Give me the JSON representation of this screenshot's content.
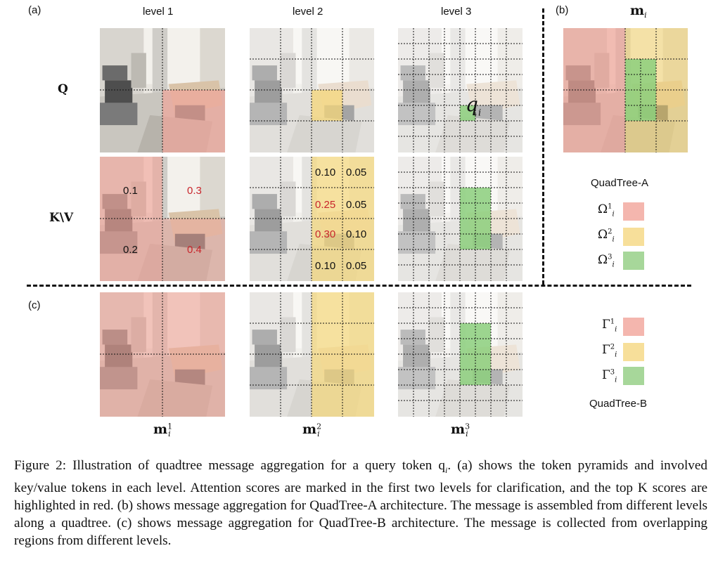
{
  "panel_labels": {
    "a": "(a)",
    "b": "(b)",
    "c": "(c)"
  },
  "levels": [
    "level 1",
    "level 2",
    "level 3"
  ],
  "row_labels": {
    "q": "Q",
    "kv": "K\\V"
  },
  "mi_label": {
    "base": "m",
    "sub": "i"
  },
  "m_labels": [
    {
      "base": "m",
      "sup": "1",
      "sub": "i"
    },
    {
      "base": "m",
      "sup": "2",
      "sub": "i"
    },
    {
      "base": "m",
      "sup": "3",
      "sub": "i"
    }
  ],
  "query_token": {
    "base": "q",
    "sub": "i"
  },
  "level1_scores": [
    {
      "value": "0.1",
      "top": false
    },
    {
      "value": "0.3",
      "top": true
    },
    {
      "value": "0.2",
      "top": false
    },
    {
      "value": "0.4",
      "top": true
    }
  ],
  "level2_scores": [
    {
      "value": "0.10",
      "top": false
    },
    {
      "value": "0.05",
      "top": false
    },
    {
      "value": "0.25",
      "top": true
    },
    {
      "value": "0.05",
      "top": false
    },
    {
      "value": "0.30",
      "top": true
    },
    {
      "value": "0.10",
      "top": false
    },
    {
      "value": "0.10",
      "top": false
    },
    {
      "value": "0.05",
      "top": false
    }
  ],
  "legend_a": {
    "title": "QuadTree-A",
    "items": [
      {
        "base": "Ω",
        "sup": "1",
        "sub": "i",
        "color": "#f4b6ae"
      },
      {
        "base": "Ω",
        "sup": "2",
        "sub": "i",
        "color": "#f7df9a"
      },
      {
        "base": "Ω",
        "sup": "3",
        "sub": "i",
        "color": "#a7d79a"
      }
    ]
  },
  "legend_b": {
    "title": "QuadTree-B",
    "items": [
      {
        "base": "Γ",
        "sup": "1",
        "sub": "i",
        "color": "#f4b6ae"
      },
      {
        "base": "Γ",
        "sup": "2",
        "sub": "i",
        "color": "#f7df9a"
      },
      {
        "base": "Γ",
        "sup": "3",
        "sub": "i",
        "color": "#a7d79a"
      }
    ]
  },
  "colors": {
    "red": "#f0a59a",
    "yellow": "#f5d77a",
    "green": "#8ccf7c",
    "top_score": "#c8262c"
  },
  "caption": {
    "l1": "Figure 2: Illustration of quadtree message aggregation for a query token q",
    "l1_sub": "i",
    "l1_rest": ". (a) shows the token pyramids and involved key/value tokens in each level. Attention scores are marked in the first two levels for clarification, and the top K scores are highlighted in red. (b) shows message aggregation for QuadTree-A architecture. The message is assembled from different levels along a quadtree. (c) shows message aggregation for QuadTree-B architecture. The message is collected from overlapping regions from different levels."
  }
}
